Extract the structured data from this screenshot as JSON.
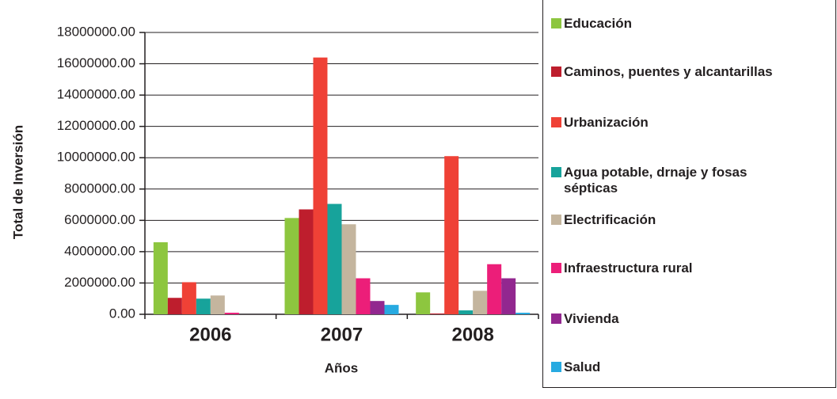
{
  "chart_data": {
    "type": "bar",
    "y_label": "Total de Inversión",
    "x_label": "Años",
    "categories": [
      "2006",
      "2007",
      "2008"
    ],
    "series": [
      {
        "name": "Educación",
        "color": "#8dc63f",
        "values": [
          4600000,
          6150000,
          1400000
        ]
      },
      {
        "name": "Caminos, puentes y alcantarillas",
        "color": "#be1e2d",
        "values": [
          1050000,
          6700000,
          50000
        ]
      },
      {
        "name": "Urbanización",
        "color": "#ef4136",
        "values": [
          2050000,
          16400000,
          10100000
        ]
      },
      {
        "name": "Agua potable, drnaje y fosas sépticas",
        "color": "#17a39b",
        "values": [
          1000000,
          7050000,
          250000
        ]
      },
      {
        "name": "Electrificación",
        "color": "#c4b59e",
        "values": [
          1200000,
          5750000,
          1500000
        ]
      },
      {
        "name": "Infraestructura rural",
        "color": "#ec1e79",
        "values": [
          100000,
          2300000,
          3200000
        ]
      },
      {
        "name": "Vivienda",
        "color": "#92278f",
        "values": [
          0,
          850000,
          2300000
        ]
      },
      {
        "name": "Salud",
        "color": "#27aae1",
        "values": [
          0,
          600000,
          100000
        ]
      }
    ],
    "ylim": [
      0,
      18000000
    ],
    "yticks": [
      {
        "value": 0,
        "label": "0.00"
      },
      {
        "value": 2000000,
        "label": "2000000.00"
      },
      {
        "value": 4000000,
        "label": "4000000.00"
      },
      {
        "value": 6000000,
        "label": "6000000.00"
      },
      {
        "value": 8000000,
        "label": "8000000.00"
      },
      {
        "value": 10000000,
        "label": "10000000.00"
      },
      {
        "value": 12000000,
        "label": "12000000.00"
      },
      {
        "value": 14000000,
        "label": "14000000.00"
      },
      {
        "value": 16000000,
        "label": "16000000.00"
      },
      {
        "value": 18000000,
        "label": "18000000.00"
      }
    ],
    "grid": true,
    "legend": "right"
  }
}
